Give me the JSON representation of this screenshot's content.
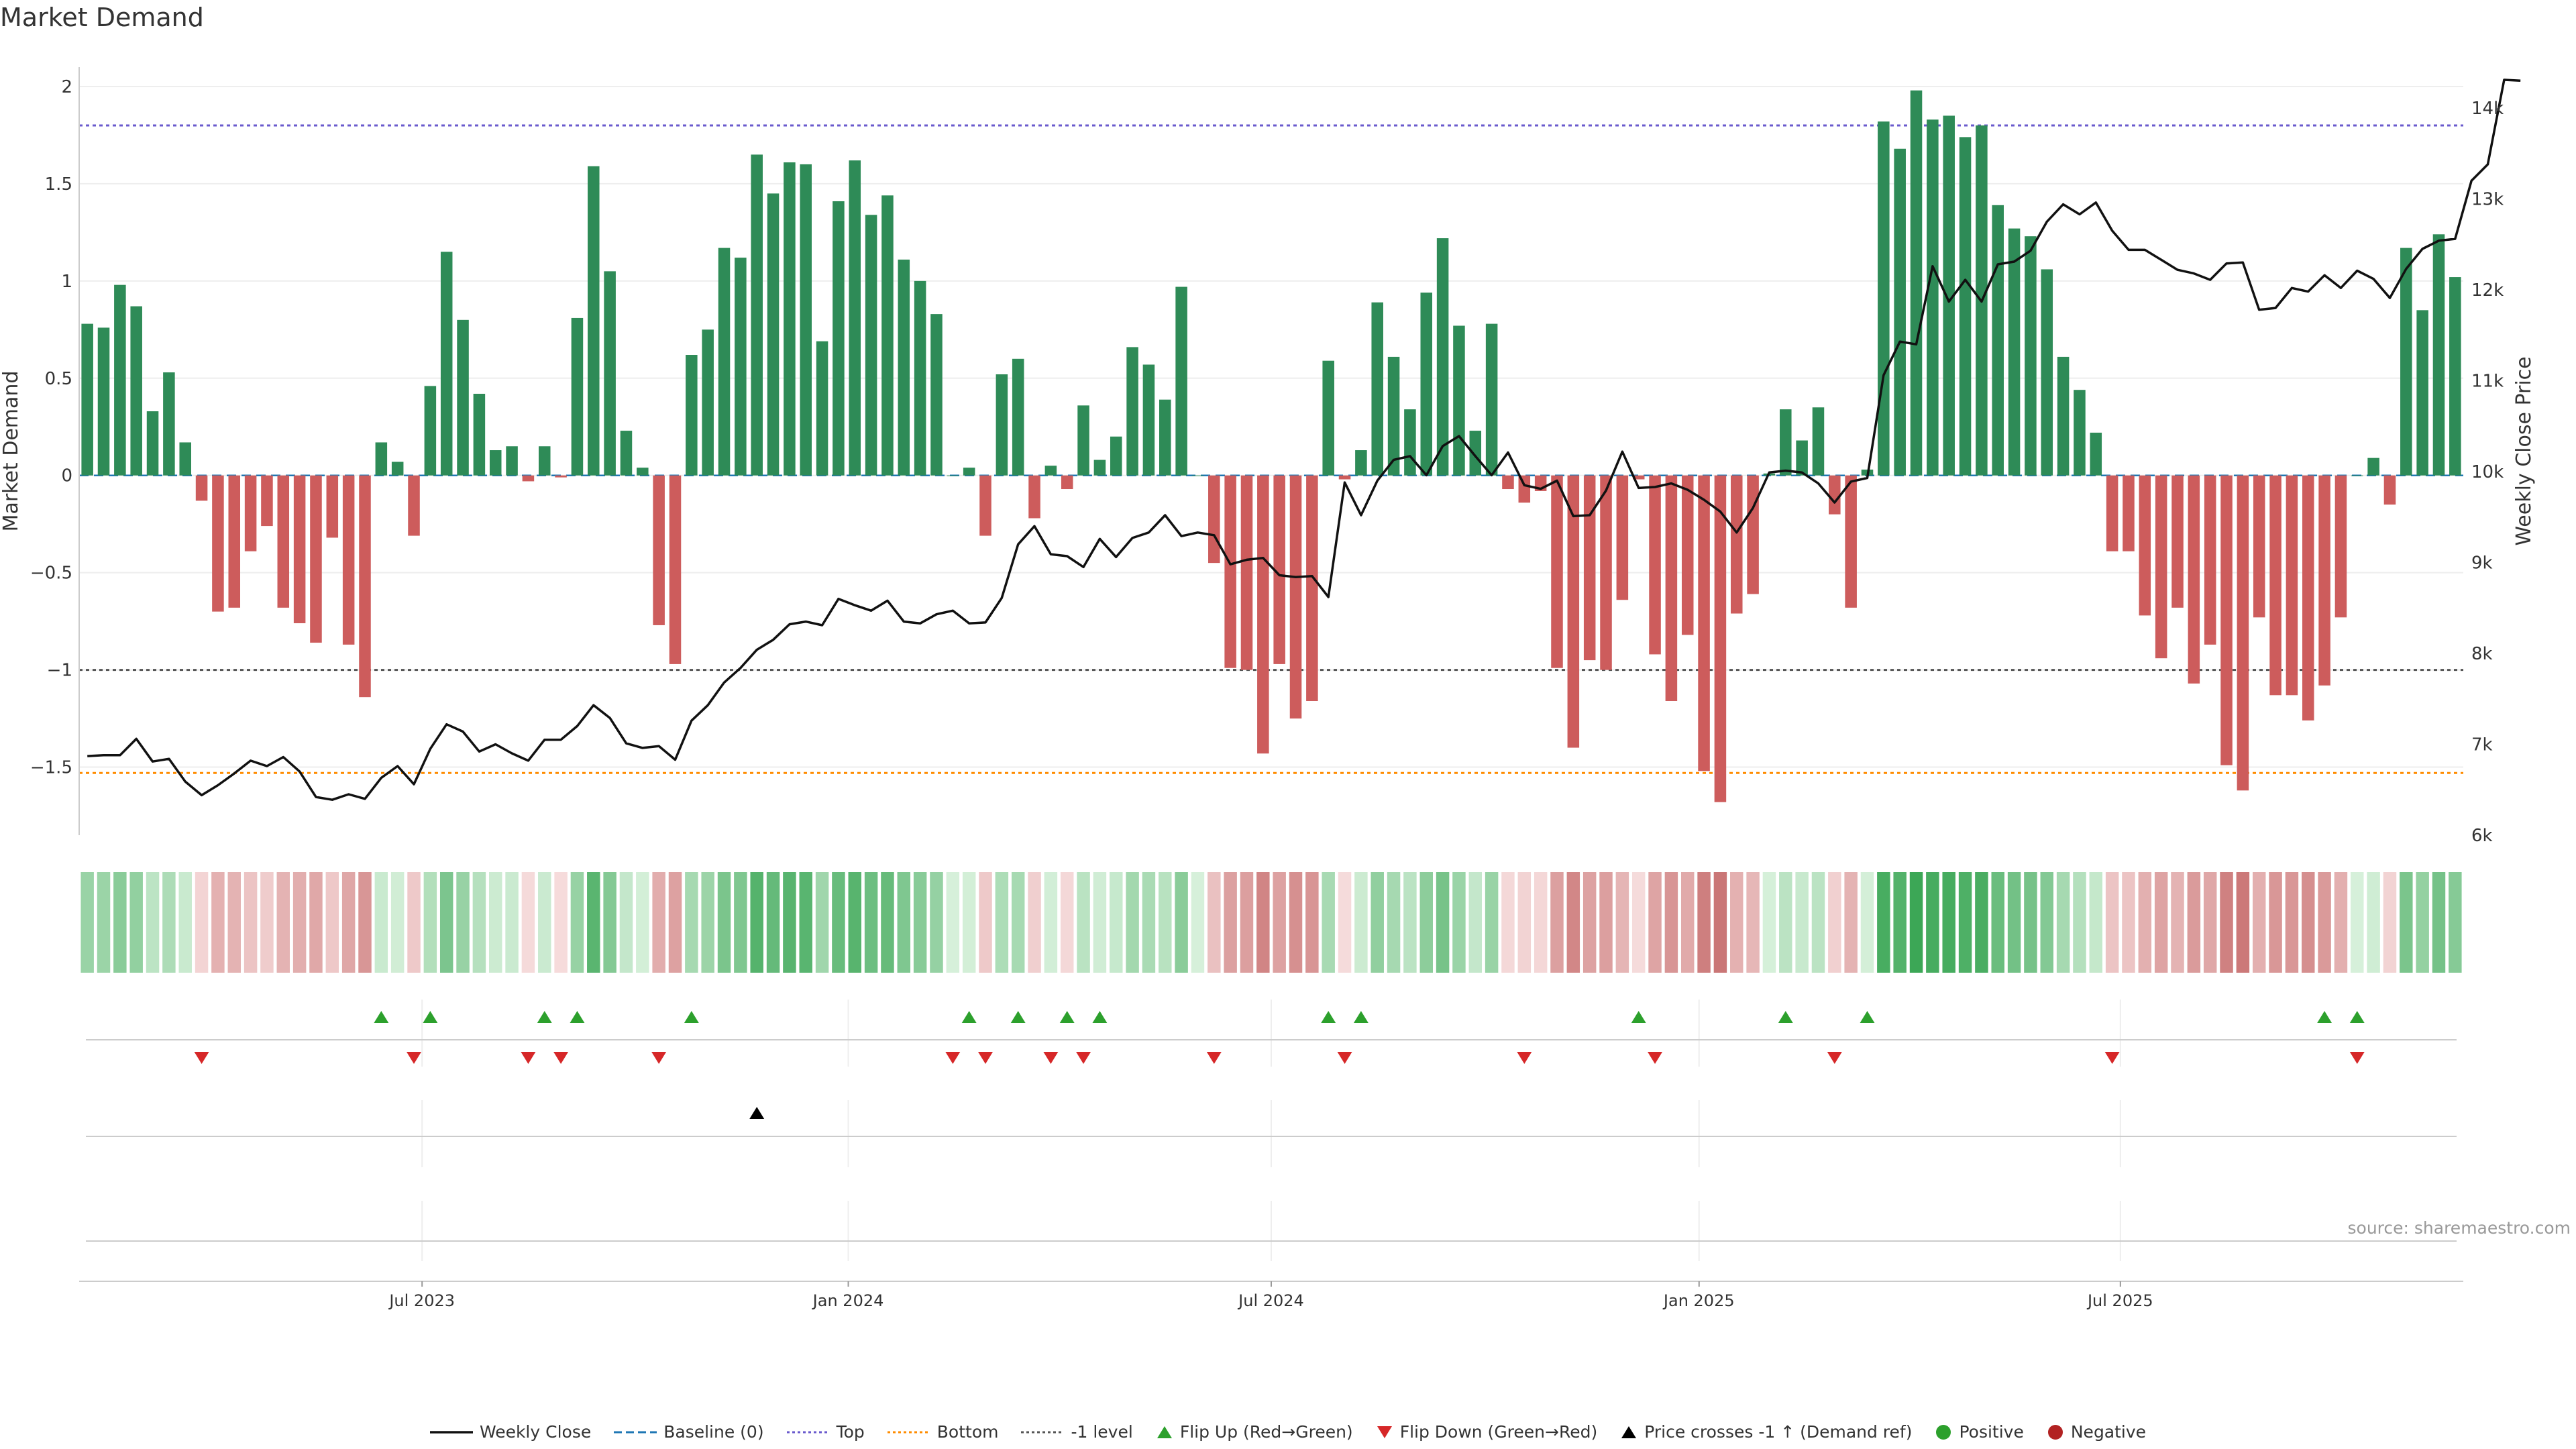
{
  "title": "Market Demand",
  "source": "source: sharemaestro.com",
  "colors": {
    "pos_bar": "#2e8b57",
    "neg_bar": "#cd5c5c",
    "close": "#111111",
    "top_line": "#6a5acd",
    "bottom_line": "#ff8c00",
    "minus1_line": "#555555",
    "flip_up": "#2ca02c",
    "flip_down": "#d62728",
    "cross": "#000000"
  },
  "chart_data": {
    "type": "bar",
    "title": "Market Demand",
    "ylabel": "Market Demand",
    "y2label": "Weekly Close Price",
    "ylim": [
      -1.85,
      2.1
    ],
    "y2lim": [
      6000,
      14450
    ],
    "yticks": [
      2,
      1.5,
      1,
      0.5,
      0,
      -0.5,
      -1,
      -1.5
    ],
    "ytick_labels": [
      "2",
      "1.5",
      "1",
      "0.5",
      "0",
      "−0.5",
      "−1",
      "−1.5"
    ],
    "y2ticks": [
      14000,
      13000,
      12000,
      11000,
      10000,
      9000,
      8000,
      7000,
      6000
    ],
    "y2tick_labels": [
      "14k",
      "13k",
      "12k",
      "11k",
      "10k",
      "9k",
      "8k",
      "7k",
      "6k"
    ],
    "levels": {
      "top": 1.8,
      "bottom": -1.53,
      "minus1": -1.0,
      "baseline": 0
    },
    "xticks": [
      {
        "label": "Jul 2023",
        "index": 20.5
      },
      {
        "label": "Jan 2024",
        "index": 46.6
      },
      {
        "label": "Jul 2024",
        "index": 72.5
      },
      {
        "label": "Jan 2025",
        "index": 98.7
      },
      {
        "label": "Jul 2025",
        "index": 124.5
      }
    ],
    "demand": [
      0.78,
      0.76,
      0.98,
      0.87,
      0.33,
      0.53,
      0.17,
      -0.13,
      -0.7,
      -0.68,
      -0.39,
      -0.26,
      -0.68,
      -0.76,
      -0.86,
      -0.32,
      -0.87,
      -1.14,
      0.17,
      0.07,
      -0.31,
      0.46,
      1.15,
      0.8,
      0.42,
      0.13,
      0.15,
      -0.03,
      0.15,
      -0.01,
      0.81,
      1.59,
      1.05,
      0.23,
      0.04,
      -0.77,
      -0.97,
      0.62,
      0.75,
      1.17,
      1.12,
      1.65,
      1.45,
      1.61,
      1.6,
      0.69,
      1.41,
      1.62,
      1.34,
      1.44,
      1.11,
      1.0,
      0.83,
      0.0,
      0.04,
      -0.31,
      0.52,
      0.6,
      -0.22,
      0.05,
      -0.07,
      0.36,
      0.08,
      0.2,
      0.66,
      0.57,
      0.39,
      0.97,
      0.0,
      -0.45,
      -0.99,
      -1.0,
      -1.43,
      -0.97,
      -1.25,
      -1.16,
      0.59,
      -0.02,
      0.13,
      0.89,
      0.61,
      0.34,
      0.94,
      1.22,
      0.77,
      0.23,
      0.78,
      -0.07,
      -0.14,
      -0.08,
      -0.99,
      -1.4,
      -0.95,
      -1.0,
      -0.64,
      -0.02,
      -0.92,
      -1.16,
      -0.82,
      -1.52,
      -1.68,
      -0.71,
      -0.61,
      0.01,
      0.34,
      0.18,
      0.35,
      -0.2,
      -0.68,
      0.03,
      1.82,
      1.68,
      1.98,
      1.83,
      1.85,
      1.74,
      1.8,
      1.39,
      1.27,
      1.23,
      1.06,
      0.61,
      0.44,
      0.22,
      -0.39,
      -0.39,
      -0.72,
      -0.94,
      -0.68,
      -1.07,
      -0.87,
      -1.49,
      -1.62,
      -0.73,
      -1.13,
      -1.13,
      -1.26,
      -1.08,
      -0.73,
      0.0,
      0.09,
      -0.15,
      1.17,
      0.85,
      1.24,
      1.02
    ],
    "close": [
      6870,
      6880,
      6880,
      7060,
      6810,
      6840,
      6590,
      6440,
      6550,
      6680,
      6820,
      6760,
      6860,
      6700,
      6420,
      6390,
      6450,
      6400,
      6630,
      6760,
      6560,
      6950,
      7220,
      7140,
      6920,
      7000,
      6900,
      6820,
      7050,
      7050,
      7200,
      7430,
      7290,
      7010,
      6960,
      6980,
      6830,
      7260,
      7430,
      7680,
      7840,
      8040,
      8150,
      8320,
      8350,
      8310,
      8600,
      8530,
      8470,
      8580,
      8350,
      8330,
      8430,
      8470,
      8330,
      8340,
      8610,
      9200,
      9400,
      9090,
      9070,
      8950,
      9260,
      9060,
      9270,
      9330,
      9520,
      9290,
      9330,
      9300,
      8980,
      9030,
      9050,
      8860,
      8840,
      8850,
      8620,
      9880,
      9520,
      9900,
      10130,
      10170,
      9960,
      10280,
      10390,
      10170,
      9960,
      10210,
      9850,
      9810,
      9900,
      9510,
      9520,
      9790,
      10220,
      9820,
      9830,
      9870,
      9800,
      9690,
      9560,
      9330,
      9600,
      9990,
      10010,
      9990,
      9870,
      9660,
      9890,
      9930,
      11060,
      11430,
      11400,
      12260,
      11870,
      12110,
      11870,
      12280,
      12310,
      12430,
      12750,
      12940,
      12830,
      12960,
      12650,
      12440,
      12440,
      12330,
      12220,
      12180,
      12110,
      12290,
      12300,
      11780,
      11800,
      12020,
      11980,
      12160,
      12020,
      12210,
      12120,
      11910,
      12230,
      12450,
      12540,
      12560,
      13200,
      13380,
      14310,
      14300
    ]
  },
  "heat_strip": {
    "label": "demand intensity",
    "values_ref": "chart_data.demand"
  },
  "flips": {
    "up_indices": [
      18,
      21,
      28,
      30,
      37,
      54,
      57,
      60,
      62,
      76,
      78,
      95,
      104,
      109,
      137,
      139
    ],
    "down_indices": [
      7,
      20,
      27,
      29,
      35,
      53,
      55,
      59,
      61,
      69,
      77,
      88,
      96,
      107,
      124,
      139
    ]
  },
  "crosses": {
    "label": "Price crosses -1 ↑ (Demand ref)",
    "indices": [
      41
    ]
  },
  "legend": [
    {
      "key": "close",
      "label": "Weekly Close",
      "icon": "solid-line"
    },
    {
      "key": "baseline",
      "label": "Baseline (0)",
      "icon": "dash-line"
    },
    {
      "key": "top",
      "label": "Top",
      "icon": "dot-line"
    },
    {
      "key": "bottom",
      "label": "Bottom",
      "icon": "dot-line"
    },
    {
      "key": "minus1",
      "label": "-1 level",
      "icon": "dot-line"
    },
    {
      "key": "flip_up",
      "label": "Flip Up (Red→Green)",
      "icon": "triangle-up"
    },
    {
      "key": "flip_down",
      "label": "Flip Down (Green→Red)",
      "icon": "triangle-down"
    },
    {
      "key": "cross",
      "label": "Price crosses -1 ↑ (Demand ref)",
      "icon": "triangle-up"
    },
    {
      "key": "positive",
      "label": "Positive",
      "icon": "circle"
    },
    {
      "key": "negative",
      "label": "Negative",
      "icon": "circle"
    }
  ]
}
